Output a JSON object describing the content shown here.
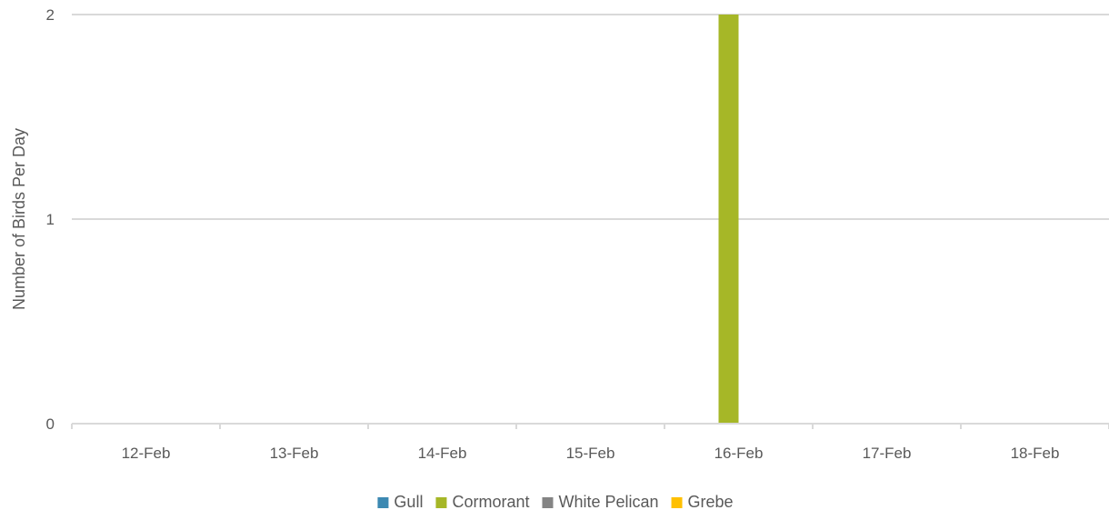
{
  "chart_data": {
    "type": "bar",
    "categories": [
      "12-Feb",
      "13-Feb",
      "14-Feb",
      "15-Feb",
      "16-Feb",
      "17-Feb",
      "18-Feb"
    ],
    "series": [
      {
        "name": "Gull",
        "color": "#3C89B2",
        "values": [
          0,
          0,
          0,
          0,
          0,
          0,
          0
        ]
      },
      {
        "name": "Cormorant",
        "color": "#A6B727",
        "values": [
          0,
          0,
          0,
          0,
          2,
          0,
          0
        ]
      },
      {
        "name": "White Pelican",
        "color": "#848484",
        "values": [
          0,
          0,
          0,
          0,
          0,
          0,
          0
        ]
      },
      {
        "name": "Grebe",
        "color": "#FFC000",
        "values": [
          0,
          0,
          0,
          0,
          0,
          0,
          0
        ]
      }
    ],
    "ylabel": "Number of Birds Per Day",
    "xlabel": "",
    "ylim": [
      0,
      2
    ],
    "yticks": [
      0,
      1,
      2
    ],
    "grid": true,
    "legend_position": "bottom"
  }
}
